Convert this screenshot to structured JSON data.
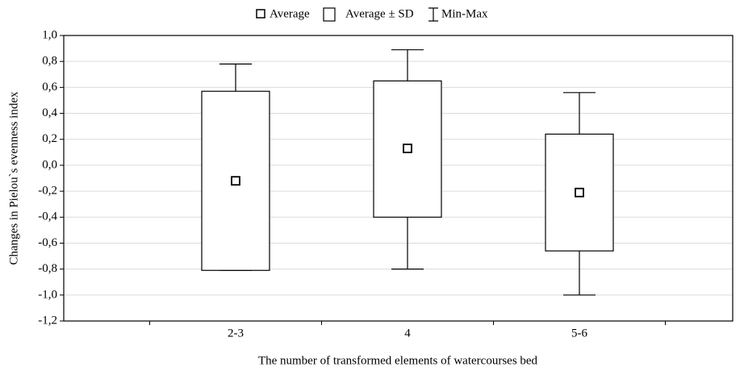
{
  "chart_data": {
    "type": "box",
    "legend": [
      "Average",
      "Average ± SD",
      "Min-Max"
    ],
    "xlabel": "The number of transformed elements of watercourses bed",
    "ylabel": "Changes in Pielou`s evenness index",
    "categories": [
      "2-3",
      "4",
      "5-6"
    ],
    "mean": [
      -0.12,
      0.13,
      -0.21
    ],
    "mean_minus_sd": [
      -0.81,
      -0.4,
      -0.66
    ],
    "mean_plus_sd": [
      0.57,
      0.65,
      0.24
    ],
    "min": [
      -0.81,
      -0.8,
      -1.0
    ],
    "max": [
      0.78,
      0.89,
      0.56
    ],
    "ylim": [
      -1.2,
      1.0
    ],
    "yticks": [
      {
        "value": 1.0,
        "label": "1,0"
      },
      {
        "value": 0.8,
        "label": "0,8"
      },
      {
        "value": 0.6,
        "label": "0,6"
      },
      {
        "value": 0.4,
        "label": "0,4"
      },
      {
        "value": 0.2,
        "label": "0,2"
      },
      {
        "value": 0.0,
        "label": "0,0"
      },
      {
        "value": -0.2,
        "label": "-0,2"
      },
      {
        "value": -0.4,
        "label": "-0,4"
      },
      {
        "value": -0.6,
        "label": "-0,6"
      },
      {
        "value": -0.8,
        "label": "-0,8"
      },
      {
        "value": -1.0,
        "label": "-1,0"
      },
      {
        "value": -1.2,
        "label": "-1,2"
      }
    ],
    "grid": true,
    "color": "#000000"
  }
}
